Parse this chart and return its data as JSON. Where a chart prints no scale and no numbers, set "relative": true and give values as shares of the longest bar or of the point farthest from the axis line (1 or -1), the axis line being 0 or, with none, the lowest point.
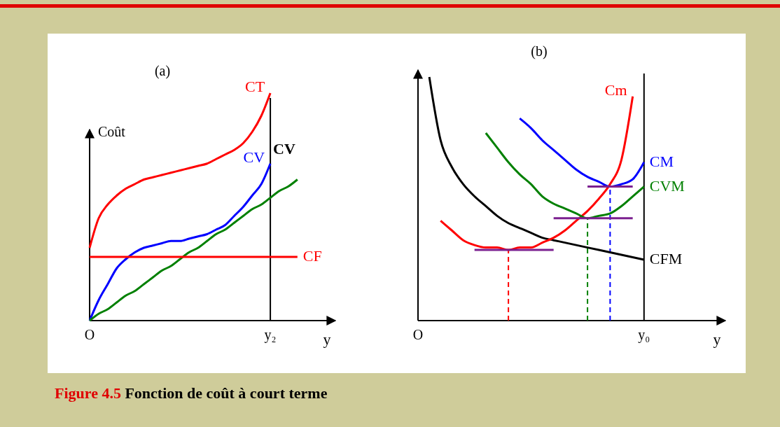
{
  "chart_data": [
    {
      "type": "line",
      "title": "(a)",
      "xlabel": "y",
      "ylabel": "Coût",
      "relative": true,
      "categories": [
        "O",
        null,
        null,
        null,
        null,
        null,
        null,
        null,
        null,
        null,
        null,
        null,
        null,
        null,
        null,
        null,
        null,
        null,
        null,
        null,
        "y₂",
        null,
        null,
        null,
        null,
        null,
        null,
        null
      ],
      "series": [
        {
          "name": "CT",
          "color": "#ff0000",
          "values": [
            0.32,
            0.45,
            0.51,
            0.55,
            0.58,
            0.6,
            0.62,
            0.63,
            0.64,
            0.65,
            0.66,
            0.67,
            0.68,
            0.69,
            0.71,
            0.73,
            0.75,
            0.78,
            0.83,
            0.9,
            1,
            null,
            null,
            null,
            null,
            null,
            null,
            null
          ]
        },
        {
          "name": "CV",
          "color": "#0000ff",
          "values": [
            0,
            0.09,
            0.16,
            0.23,
            0.27,
            0.3,
            0.32,
            0.33,
            0.34,
            0.35,
            0.35,
            0.36,
            0.37,
            0.38,
            0.4,
            0.42,
            0.46,
            0.5,
            0.55,
            0.6,
            0.69,
            null,
            null,
            null,
            null,
            null,
            null,
            null
          ]
        },
        {
          "color": "#008000",
          "values": [
            0,
            0.03,
            0.05,
            0.08,
            0.11,
            0.13,
            0.16,
            0.19,
            0.22,
            0.24,
            0.27,
            0.3,
            0.32,
            0.35,
            0.38,
            0.4,
            0.43,
            0.46,
            0.49,
            0.51,
            0.54,
            0.57,
            0.59,
            0.62,
            null,
            null,
            null,
            null
          ]
        },
        {
          "name": "CF",
          "color": "#ff0000",
          "values": [
            0.28,
            0.28,
            0.28,
            0.28,
            0.28,
            0.28,
            0.28,
            0.28,
            0.28,
            0.28,
            0.28,
            0.28,
            0.28,
            0.28,
            0.28,
            0.28,
            0.28,
            0.28,
            0.28,
            0.28,
            0.28,
            0.28,
            0.28,
            0.28,
            null,
            null,
            null,
            null
          ]
        }
      ],
      "ref_lines": [
        {
          "axis": "x",
          "value": "y₂",
          "label": "CV",
          "color": "#000000"
        }
      ],
      "annotations": [
        "Figure 4.5",
        "Fonction de coût à court terme"
      ]
    },
    {
      "type": "line",
      "title": "(b)",
      "xlabel": "y",
      "relative": true,
      "categories": [
        "O",
        null,
        null,
        null,
        null,
        null,
        null,
        null,
        null,
        null,
        null,
        null,
        null,
        null,
        null,
        null,
        null,
        null,
        null,
        null,
        "y₀",
        null,
        null,
        null,
        null,
        null,
        null,
        null
      ],
      "series": [
        {
          "name": "CFM",
          "color": "#000000",
          "values": [
            null,
            1,
            0.74,
            0.63,
            0.56,
            0.51,
            0.47,
            0.43,
            0.4,
            0.38,
            0.36,
            0.34,
            0.33,
            0.32,
            0.31,
            0.3,
            0.29,
            0.28,
            0.27,
            0.26,
            0.25,
            null,
            null,
            null,
            null,
            null,
            null,
            null
          ]
        },
        {
          "name": "Cm",
          "color": "#ff0000",
          "values": [
            null,
            null,
            0.41,
            0.37,
            0.33,
            0.31,
            0.3,
            0.3,
            0.29,
            0.3,
            0.3,
            0.32,
            0.34,
            0.37,
            0.41,
            0.45,
            0.5,
            0.56,
            0.66,
            0.92,
            null,
            null,
            null,
            null,
            null,
            null,
            null,
            null
          ]
        },
        {
          "name": "CM",
          "color": "#0000ff",
          "values": [
            null,
            null,
            null,
            null,
            null,
            null,
            null,
            null,
            null,
            0.83,
            0.79,
            0.74,
            0.7,
            0.66,
            0.62,
            0.59,
            0.57,
            0.55,
            0.56,
            0.58,
            0.65,
            null,
            null,
            null,
            null,
            null,
            null,
            null
          ]
        },
        {
          "name": "CVM",
          "color": "#008000",
          "values": [
            null,
            null,
            null,
            null,
            null,
            null,
            0.77,
            0.71,
            0.65,
            0.6,
            0.56,
            0.51,
            0.48,
            0.46,
            0.44,
            0.42,
            0.43,
            0.44,
            0.47,
            0.51,
            0.55,
            null,
            null,
            null,
            null,
            null,
            null,
            null
          ]
        },
        {
          "color": "#7b1f8f",
          "values": [
            null,
            null,
            null,
            null,
            null,
            0.29,
            0.29,
            0.29,
            0.29,
            0.29,
            0.29,
            0.29,
            0.29,
            null,
            null,
            null,
            null,
            null,
            null,
            null,
            null,
            null,
            null,
            null,
            null,
            null,
            null,
            null
          ]
        },
        {
          "color": "#7b1f8f",
          "values": [
            null,
            null,
            null,
            null,
            null,
            null,
            null,
            null,
            null,
            null,
            null,
            null,
            0.42,
            0.42,
            0.42,
            0.42,
            0.42,
            0.42,
            0.42,
            0.42,
            null,
            null,
            null,
            null,
            null,
            null,
            null,
            null
          ]
        },
        {
          "color": "#7b1f8f",
          "values": [
            null,
            null,
            null,
            null,
            null,
            null,
            null,
            null,
            null,
            null,
            null,
            null,
            null,
            null,
            null,
            0.55,
            0.55,
            0.55,
            0.55,
            0.55,
            null,
            null,
            null,
            null,
            null,
            null,
            null,
            null
          ]
        }
      ],
      "ref_lines": [
        {
          "axis": "x",
          "value": "y₀",
          "color": "#000000"
        }
      ]
    }
  ]
}
